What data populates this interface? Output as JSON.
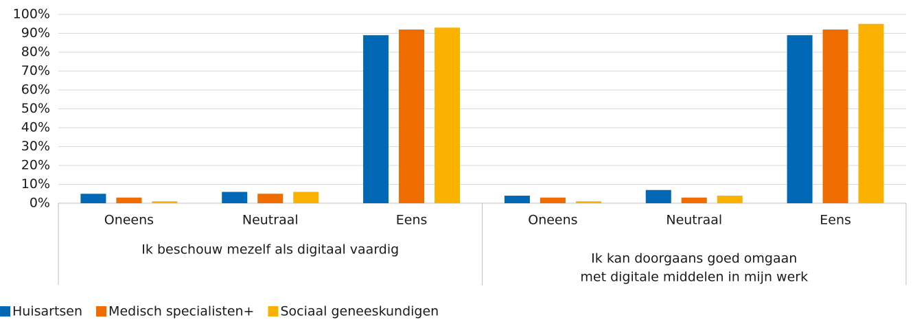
{
  "chart_data": {
    "type": "bar",
    "categories": [
      "Oneens",
      "Neutraal",
      "Eens",
      "Oneens",
      "Neutraal",
      "Eens"
    ],
    "groups": [
      {
        "label": [
          "Ik beschouw mezelf als digitaal vaardig"
        ]
      },
      {
        "label": [
          "Ik kan doorgaans goed omgaan",
          "met digitale middelen in mijn werk"
        ]
      }
    ],
    "series": [
      {
        "name": "Huisartsen",
        "color": "#0068b4",
        "values": [
          5,
          6,
          89,
          4,
          7,
          89
        ]
      },
      {
        "name": "Medisch specialisten+",
        "color": "#ee6c00",
        "values": [
          3,
          5,
          92,
          3,
          3,
          92
        ]
      },
      {
        "name": "Sociaal geneeskundigen",
        "color": "#fbb100",
        "values": [
          1,
          6,
          93,
          1,
          4,
          95
        ]
      }
    ],
    "ylim": [
      0,
      100
    ],
    "yticks": [
      {
        "value": 0,
        "label": "0%"
      },
      {
        "value": 10,
        "label": "10%"
      },
      {
        "value": 20,
        "label": "20%"
      },
      {
        "value": 30,
        "label": "30%"
      },
      {
        "value": 40,
        "label": "40%"
      },
      {
        "value": 50,
        "label": "50%"
      },
      {
        "value": 60,
        "label": "60%"
      },
      {
        "value": 70,
        "label": "70%"
      },
      {
        "value": 80,
        "label": "80%"
      },
      {
        "value": 90,
        "label": "90%"
      },
      {
        "value": 100,
        "label": "100%"
      }
    ],
    "grid": true,
    "legend": "bottom-left"
  }
}
